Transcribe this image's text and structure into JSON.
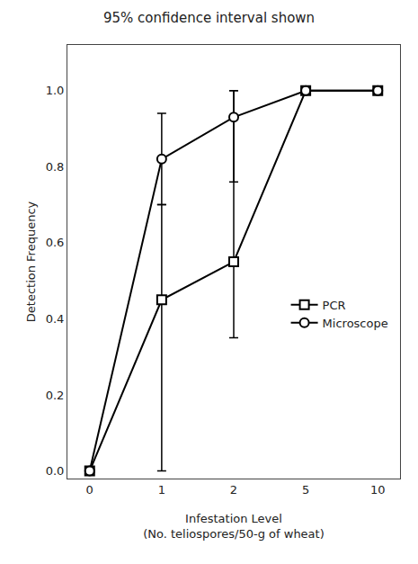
{
  "chart_data": {
    "type": "line",
    "title": "95% confidence interval shown",
    "xlabel": "Infestation Level\n(No. teliospores/50-g of wheat)",
    "ylabel": "Detection Frequency",
    "categories": [
      "0",
      "1",
      "2",
      "5",
      "10"
    ],
    "series": [
      {
        "name": "PCR",
        "color": "#000000",
        "marker": "square",
        "line_style": "solid",
        "values": [
          0.0,
          0.45,
          0.55,
          1.0,
          1.0
        ],
        "error_lower": [
          0.0,
          0.45,
          0.2,
          0.0,
          0.0
        ],
        "error_upper": [
          0.0,
          0.25,
          0.45,
          0.0,
          0.0
        ]
      },
      {
        "name": "Microscope",
        "color": "#000000",
        "marker": "circle",
        "line_style": "solid",
        "values": [
          0.0,
          0.82,
          0.93,
          1.0,
          1.0
        ],
        "error_lower": [
          0.0,
          0.12,
          0.17,
          0.0,
          0.0
        ],
        "error_upper": [
          0.0,
          0.12,
          0.07,
          0.0,
          0.0
        ]
      }
    ],
    "ylim": [
      -0.02,
      1.12
    ],
    "yticks": [
      {
        "value": 0.0,
        "label": "0.0"
      },
      0.2,
      0.4,
      0.6,
      0.8,
      {
        "value": 1.0,
        "label": "1.0"
      }
    ],
    "grid": false,
    "legend": "right"
  }
}
